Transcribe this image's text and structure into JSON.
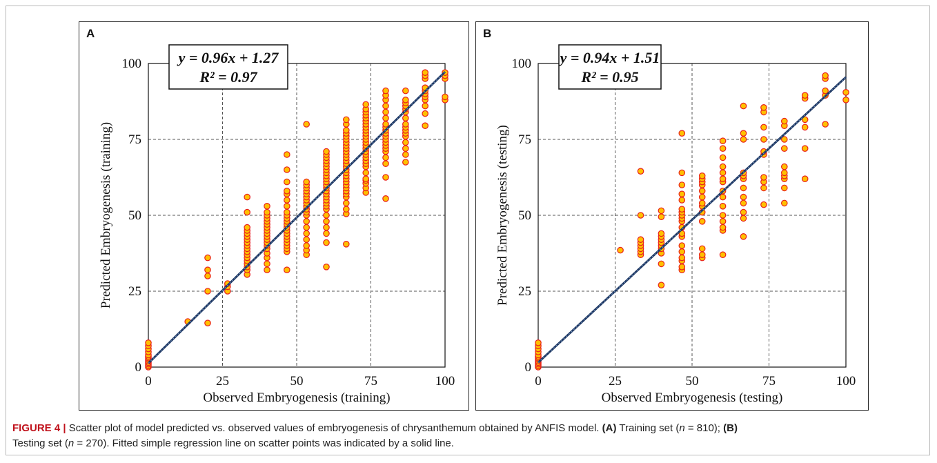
{
  "figure": {
    "caption_label": "FIGURE 4 |",
    "caption_text": [
      "Scatter plot of model predicted vs. observed values of embryogenesis of chrysanthemum obtained by ANFIS model.",
      "(A)",
      "Training set (",
      "n",
      " = 810);",
      "(B)",
      "Testing set (",
      "n",
      " = 270). Fitted simple regression line on scatter points was indicated by a solid line."
    ]
  },
  "colors": {
    "marker_fill": "#FFC000",
    "marker_edge": "#E8201C",
    "line": "#1F3864",
    "line_dots": "#6F8FB5",
    "grid": "#555555",
    "caption_label": "#C0121C"
  },
  "chart_data": [
    {
      "type": "scatter",
      "panel_label": "A",
      "xlabel": "Observed Embryogenesis (training)",
      "ylabel": "Predicted Embryogenesis (training)",
      "xlim": [
        0,
        100
      ],
      "ylim": [
        0,
        100
      ],
      "xticks": [
        "0",
        "25",
        "50",
        "75",
        "100"
      ],
      "yticks": [
        "0",
        "25",
        "50",
        "75",
        "100"
      ],
      "grid": true,
      "equation": "y = 0.96x + 1.27",
      "r2": "R² = 0.97",
      "fit": {
        "slope": 0.96,
        "intercept": 1.27
      },
      "points": [
        [
          0,
          0
        ],
        [
          0,
          0.5
        ],
        [
          0,
          1
        ],
        [
          0,
          1.5
        ],
        [
          0,
          2
        ],
        [
          0,
          2.5
        ],
        [
          0,
          3
        ],
        [
          0,
          3.5
        ],
        [
          0,
          4
        ],
        [
          0,
          5
        ],
        [
          0,
          6
        ],
        [
          0,
          7
        ],
        [
          0,
          8
        ],
        [
          13.3,
          15
        ],
        [
          20,
          14.5
        ],
        [
          20,
          25
        ],
        [
          20,
          30
        ],
        [
          20,
          32
        ],
        [
          20,
          36
        ],
        [
          26.7,
          25
        ],
        [
          26.7,
          26.5
        ],
        [
          26.7,
          27.5
        ],
        [
          33.3,
          30.5
        ],
        [
          33.3,
          32
        ],
        [
          33.3,
          33
        ],
        [
          33.3,
          34
        ],
        [
          33.3,
          35
        ],
        [
          33.3,
          36
        ],
        [
          33.3,
          37
        ],
        [
          33.3,
          38
        ],
        [
          33.3,
          39
        ],
        [
          33.3,
          40
        ],
        [
          33.3,
          41
        ],
        [
          33.3,
          42
        ],
        [
          33.3,
          43
        ],
        [
          33.3,
          44
        ],
        [
          33.3,
          45
        ],
        [
          33.3,
          46
        ],
        [
          33.3,
          51
        ],
        [
          33.3,
          56
        ],
        [
          40,
          32
        ],
        [
          40,
          34
        ],
        [
          40,
          36
        ],
        [
          40,
          37.5
        ],
        [
          40,
          39
        ],
        [
          40,
          40
        ],
        [
          40,
          41
        ],
        [
          40,
          42
        ],
        [
          40,
          43
        ],
        [
          40,
          44
        ],
        [
          40,
          45
        ],
        [
          40,
          46
        ],
        [
          40,
          47
        ],
        [
          40,
          48
        ],
        [
          40,
          49
        ],
        [
          40,
          50
        ],
        [
          40,
          51
        ],
        [
          40,
          53
        ],
        [
          46.7,
          32
        ],
        [
          46.7,
          38
        ],
        [
          46.7,
          39
        ],
        [
          46.7,
          40
        ],
        [
          46.7,
          41
        ],
        [
          46.7,
          42
        ],
        [
          46.7,
          43
        ],
        [
          46.7,
          44
        ],
        [
          46.7,
          45
        ],
        [
          46.7,
          46
        ],
        [
          46.7,
          47
        ],
        [
          46.7,
          48
        ],
        [
          46.7,
          49
        ],
        [
          46.7,
          50
        ],
        [
          46.7,
          51
        ],
        [
          46.7,
          53
        ],
        [
          46.7,
          55
        ],
        [
          46.7,
          57
        ],
        [
          46.7,
          58
        ],
        [
          46.7,
          61
        ],
        [
          46.7,
          65
        ],
        [
          46.7,
          70
        ],
        [
          53.3,
          37
        ],
        [
          53.3,
          38.5
        ],
        [
          53.3,
          40
        ],
        [
          53.3,
          42
        ],
        [
          53.3,
          44
        ],
        [
          53.3,
          46
        ],
        [
          53.3,
          48
        ],
        [
          53.3,
          50
        ],
        [
          53.3,
          51
        ],
        [
          53.3,
          52
        ],
        [
          53.3,
          53
        ],
        [
          53.3,
          54
        ],
        [
          53.3,
          55
        ],
        [
          53.3,
          56
        ],
        [
          53.3,
          57
        ],
        [
          53.3,
          58
        ],
        [
          53.3,
          59
        ],
        [
          53.3,
          60
        ],
        [
          53.3,
          61
        ],
        [
          53.3,
          80
        ],
        [
          60,
          33
        ],
        [
          60,
          41
        ],
        [
          60,
          44
        ],
        [
          60,
          46
        ],
        [
          60,
          48
        ],
        [
          60,
          50
        ],
        [
          60,
          52
        ],
        [
          60,
          53
        ],
        [
          60,
          54
        ],
        [
          60,
          55
        ],
        [
          60,
          56
        ],
        [
          60,
          57
        ],
        [
          60,
          58
        ],
        [
          60,
          59
        ],
        [
          60,
          60
        ],
        [
          60,
          61
        ],
        [
          60,
          62
        ],
        [
          60,
          63
        ],
        [
          60,
          64
        ],
        [
          60,
          65
        ],
        [
          60,
          66
        ],
        [
          60,
          67
        ],
        [
          60,
          68
        ],
        [
          60,
          69
        ],
        [
          60,
          70
        ],
        [
          60,
          71
        ],
        [
          66.7,
          40.5
        ],
        [
          66.7,
          50.5
        ],
        [
          66.7,
          52
        ],
        [
          66.7,
          54
        ],
        [
          66.7,
          56
        ],
        [
          66.7,
          57
        ],
        [
          66.7,
          58
        ],
        [
          66.7,
          59
        ],
        [
          66.7,
          60
        ],
        [
          66.7,
          61
        ],
        [
          66.7,
          62
        ],
        [
          66.7,
          63
        ],
        [
          66.7,
          64
        ],
        [
          66.7,
          65
        ],
        [
          66.7,
          66
        ],
        [
          66.7,
          67
        ],
        [
          66.7,
          68
        ],
        [
          66.7,
          69
        ],
        [
          66.7,
          70
        ],
        [
          66.7,
          71
        ],
        [
          66.7,
          72
        ],
        [
          66.7,
          73
        ],
        [
          66.7,
          74
        ],
        [
          66.7,
          75
        ],
        [
          66.7,
          76
        ],
        [
          66.7,
          77
        ],
        [
          66.7,
          78
        ],
        [
          66.7,
          80
        ],
        [
          66.7,
          81.5
        ],
        [
          73.3,
          57.5
        ],
        [
          73.3,
          59
        ],
        [
          73.3,
          60.5
        ],
        [
          73.3,
          61.5
        ],
        [
          73.3,
          62
        ],
        [
          73.3,
          64
        ],
        [
          73.3,
          66
        ],
        [
          73.3,
          67
        ],
        [
          73.3,
          68
        ],
        [
          73.3,
          69
        ],
        [
          73.3,
          70
        ],
        [
          73.3,
          71
        ],
        [
          73.3,
          72
        ],
        [
          73.3,
          73
        ],
        [
          73.3,
          74
        ],
        [
          73.3,
          75
        ],
        [
          73.3,
          76
        ],
        [
          73.3,
          77
        ],
        [
          73.3,
          78
        ],
        [
          73.3,
          79
        ],
        [
          73.3,
          80
        ],
        [
          73.3,
          81
        ],
        [
          73.3,
          82
        ],
        [
          73.3,
          83
        ],
        [
          73.3,
          84
        ],
        [
          73.3,
          85
        ],
        [
          73.3,
          86.5
        ],
        [
          80,
          55.5
        ],
        [
          80,
          62.5
        ],
        [
          80,
          67
        ],
        [
          80,
          69
        ],
        [
          80,
          71
        ],
        [
          80,
          72
        ],
        [
          80,
          73
        ],
        [
          80,
          74
        ],
        [
          80,
          75
        ],
        [
          80,
          76
        ],
        [
          80,
          77
        ],
        [
          80,
          78
        ],
        [
          80,
          79
        ],
        [
          80,
          80
        ],
        [
          80,
          82
        ],
        [
          80,
          84
        ],
        [
          80,
          86
        ],
        [
          80,
          88
        ],
        [
          80,
          89.5
        ],
        [
          80,
          91
        ],
        [
          86.7,
          67.5
        ],
        [
          86.7,
          70
        ],
        [
          86.7,
          72
        ],
        [
          86.7,
          74
        ],
        [
          86.7,
          76
        ],
        [
          86.7,
          77
        ],
        [
          86.7,
          78
        ],
        [
          86.7,
          79
        ],
        [
          86.7,
          80
        ],
        [
          86.7,
          82
        ],
        [
          86.7,
          84
        ],
        [
          86.7,
          85
        ],
        [
          86.7,
          86
        ],
        [
          86.7,
          87
        ],
        [
          86.7,
          88
        ],
        [
          86.7,
          91
        ],
        [
          93.3,
          79.5
        ],
        [
          93.3,
          83.5
        ],
        [
          93.3,
          86
        ],
        [
          93.3,
          88
        ],
        [
          93.3,
          89
        ],
        [
          93.3,
          90
        ],
        [
          93.3,
          91
        ],
        [
          93.3,
          92
        ],
        [
          93.3,
          95
        ],
        [
          93.3,
          96
        ],
        [
          93.3,
          97
        ],
        [
          100,
          88
        ],
        [
          100,
          89
        ],
        [
          100,
          95
        ],
        [
          100,
          96
        ],
        [
          100,
          97
        ]
      ]
    },
    {
      "type": "scatter",
      "panel_label": "B",
      "xlabel": "Observed Embryogenesis (testing)",
      "ylabel": "Predicted Embryogenesis (testing)",
      "xlim": [
        0,
        100
      ],
      "ylim": [
        0,
        100
      ],
      "xticks": [
        "0",
        "25",
        "50",
        "75",
        "100"
      ],
      "yticks": [
        "0",
        "25",
        "50",
        "75",
        "100"
      ],
      "grid": true,
      "equation": "y = 0.94x + 1.51",
      "r2": "R² = 0.95",
      "fit": {
        "slope": 0.94,
        "intercept": 1.51
      },
      "points": [
        [
          0,
          0
        ],
        [
          0,
          0.5
        ],
        [
          0,
          1
        ],
        [
          0,
          1.5
        ],
        [
          0,
          2
        ],
        [
          0,
          2.5
        ],
        [
          0,
          3
        ],
        [
          0,
          3.5
        ],
        [
          0,
          4
        ],
        [
          0,
          5
        ],
        [
          0,
          6
        ],
        [
          0,
          7
        ],
        [
          0,
          8
        ],
        [
          26.7,
          38.5
        ],
        [
          33.3,
          37
        ],
        [
          33.3,
          38
        ],
        [
          33.3,
          39
        ],
        [
          33.3,
          40
        ],
        [
          33.3,
          41
        ],
        [
          33.3,
          42
        ],
        [
          33.3,
          50
        ],
        [
          33.3,
          64.5
        ],
        [
          40,
          27
        ],
        [
          40,
          34
        ],
        [
          40,
          37.5
        ],
        [
          40,
          39
        ],
        [
          40,
          40
        ],
        [
          40,
          41
        ],
        [
          40,
          42
        ],
        [
          40,
          43
        ],
        [
          40,
          44
        ],
        [
          40,
          49.5
        ],
        [
          40,
          51.5
        ],
        [
          46.7,
          32
        ],
        [
          46.7,
          33
        ],
        [
          46.7,
          35
        ],
        [
          46.7,
          36
        ],
        [
          46.7,
          38
        ],
        [
          46.7,
          40
        ],
        [
          46.7,
          43
        ],
        [
          46.7,
          44
        ],
        [
          46.7,
          46
        ],
        [
          46.7,
          48
        ],
        [
          46.7,
          49
        ],
        [
          46.7,
          50
        ],
        [
          46.7,
          51
        ],
        [
          46.7,
          52
        ],
        [
          46.7,
          55
        ],
        [
          46.7,
          57
        ],
        [
          46.7,
          60
        ],
        [
          46.7,
          64
        ],
        [
          46.7,
          77
        ],
        [
          53.3,
          36
        ],
        [
          53.3,
          37
        ],
        [
          53.3,
          39
        ],
        [
          53.3,
          48
        ],
        [
          53.3,
          51
        ],
        [
          53.3,
          53
        ],
        [
          53.3,
          54
        ],
        [
          53.3,
          56
        ],
        [
          53.3,
          58
        ],
        [
          53.3,
          60
        ],
        [
          53.3,
          61
        ],
        [
          53.3,
          62
        ],
        [
          53.3,
          63
        ],
        [
          60,
          37
        ],
        [
          60,
          45
        ],
        [
          60,
          46
        ],
        [
          60,
          48
        ],
        [
          60,
          50
        ],
        [
          60,
          53
        ],
        [
          60,
          56
        ],
        [
          60,
          58
        ],
        [
          60,
          61
        ],
        [
          60,
          62
        ],
        [
          60,
          64
        ],
        [
          60,
          66
        ],
        [
          60,
          69
        ],
        [
          60,
          72
        ],
        [
          60,
          74.5
        ],
        [
          66.7,
          43
        ],
        [
          66.7,
          49
        ],
        [
          66.7,
          51
        ],
        [
          66.7,
          54
        ],
        [
          66.7,
          56
        ],
        [
          66.7,
          59
        ],
        [
          66.7,
          62
        ],
        [
          66.7,
          63
        ],
        [
          66.7,
          64
        ],
        [
          66.7,
          75
        ],
        [
          66.7,
          77
        ],
        [
          66.7,
          86
        ],
        [
          73.3,
          53.5
        ],
        [
          73.3,
          59
        ],
        [
          73.3,
          61
        ],
        [
          73.3,
          62.5
        ],
        [
          73.3,
          70
        ],
        [
          73.3,
          71
        ],
        [
          73.3,
          75
        ],
        [
          73.3,
          79
        ],
        [
          73.3,
          84
        ],
        [
          73.3,
          85.5
        ],
        [
          80,
          54
        ],
        [
          80,
          59
        ],
        [
          80,
          62
        ],
        [
          80,
          63
        ],
        [
          80,
          64
        ],
        [
          80,
          66
        ],
        [
          80,
          72
        ],
        [
          80,
          75
        ],
        [
          80,
          79.5
        ],
        [
          80,
          81
        ],
        [
          86.7,
          62
        ],
        [
          86.7,
          72
        ],
        [
          86.7,
          79
        ],
        [
          86.7,
          81.5
        ],
        [
          86.7,
          88.5
        ],
        [
          86.7,
          89.5
        ],
        [
          93.3,
          80
        ],
        [
          93.3,
          89.5
        ],
        [
          93.3,
          91
        ],
        [
          93.3,
          95
        ],
        [
          93.3,
          96
        ],
        [
          100,
          88
        ],
        [
          100,
          90.5
        ]
      ]
    }
  ]
}
